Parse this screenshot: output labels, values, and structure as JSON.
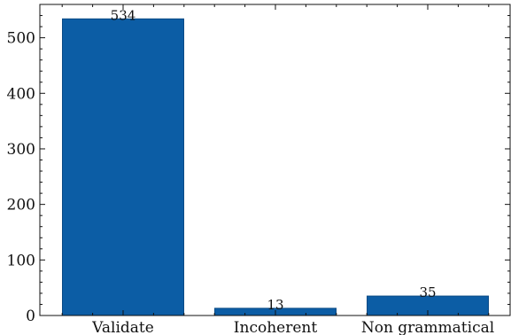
{
  "chart_data": {
    "type": "bar",
    "categories": [
      "Validate",
      "Incoherent",
      "Non grammatical"
    ],
    "values": [
      534,
      13,
      35
    ],
    "data_labels": [
      "534",
      "13",
      "35"
    ],
    "title": "",
    "xlabel": "",
    "ylabel": "",
    "ylim": [
      0,
      560
    ],
    "yticks": [
      0,
      100,
      200,
      300,
      400,
      500
    ],
    "grid": false,
    "legend": "none",
    "bar_color": "#0c5da5",
    "bar_edge_color": "#0a4a85"
  }
}
